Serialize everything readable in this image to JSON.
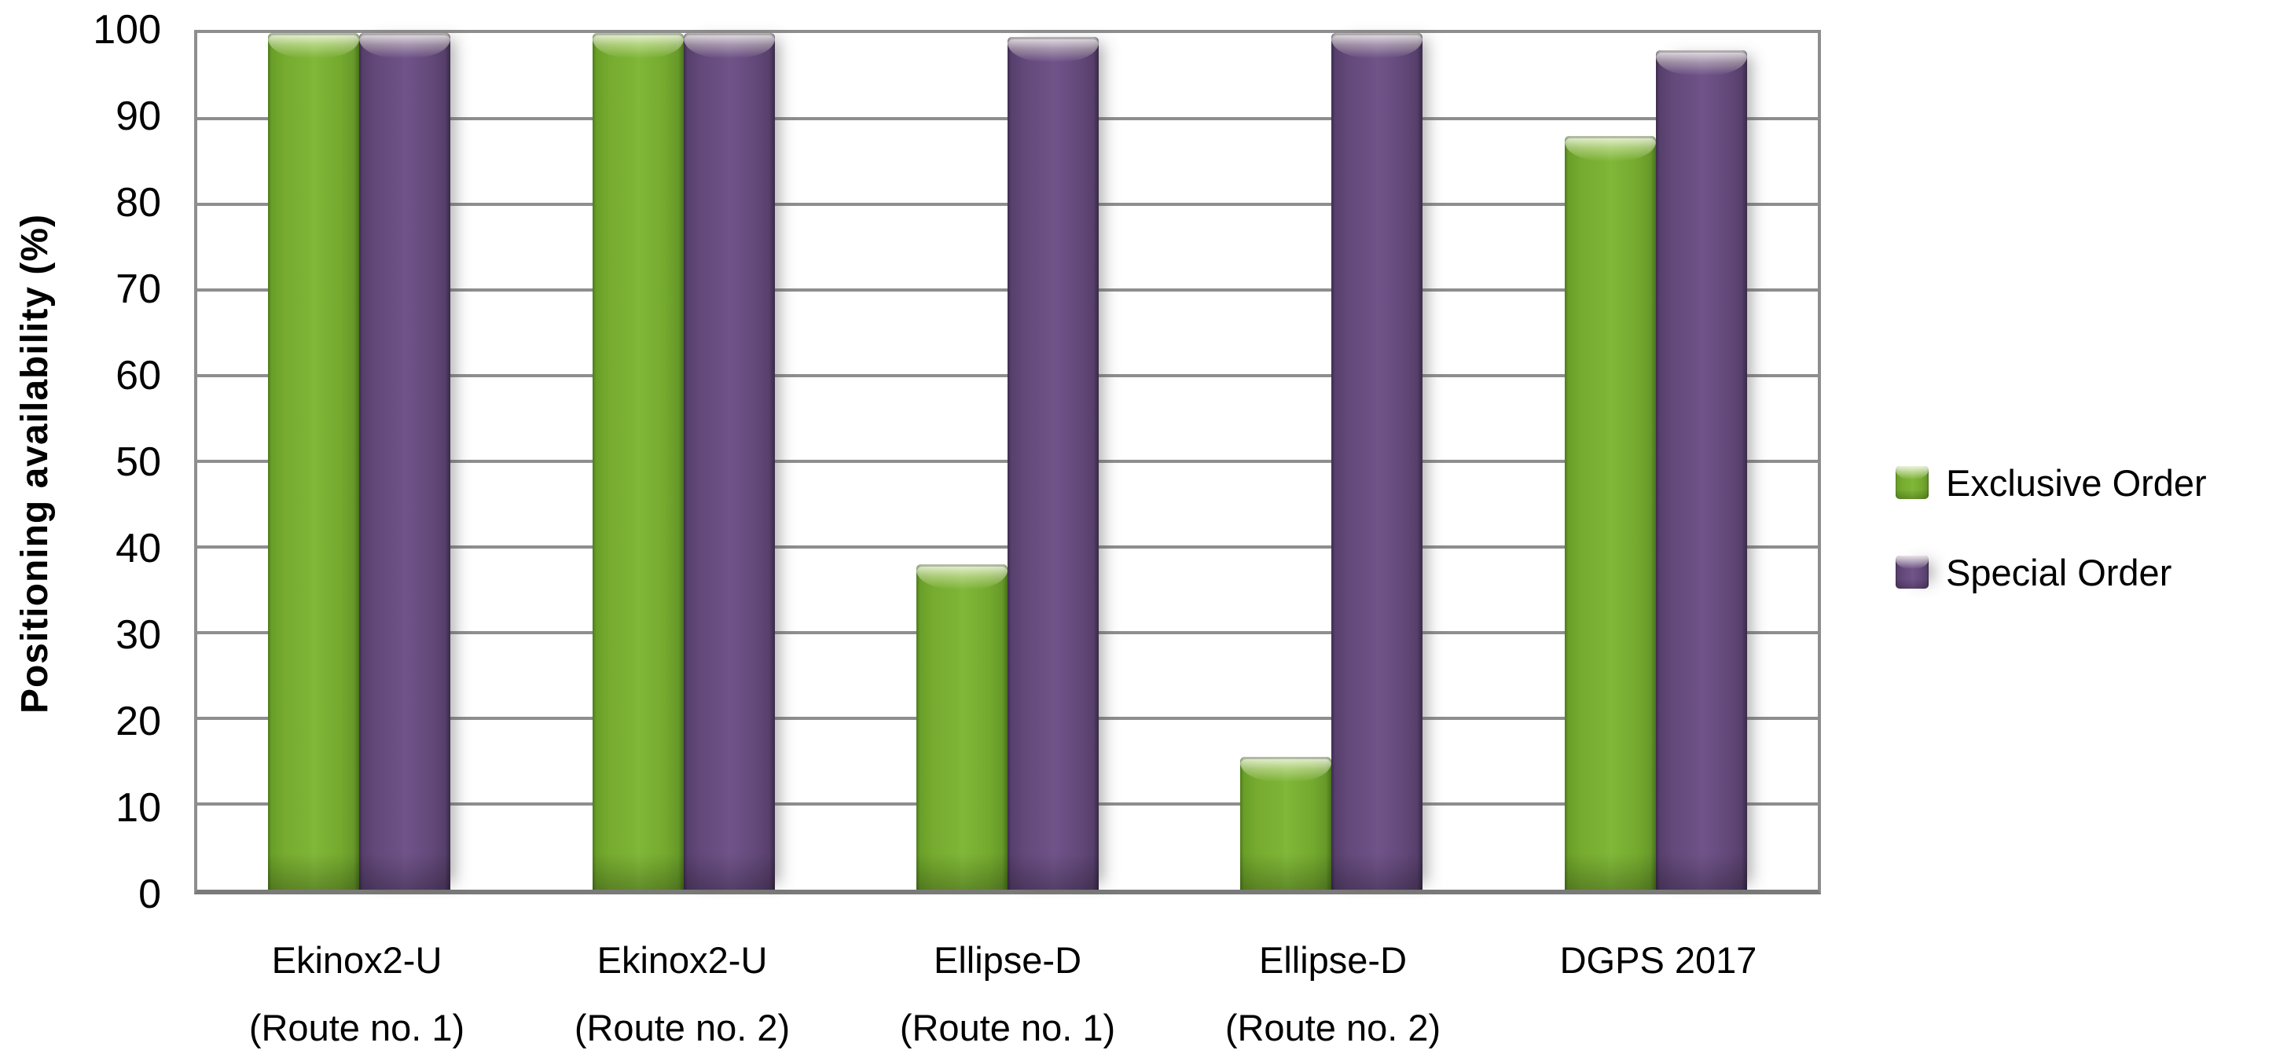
{
  "page": {
    "background": "#ffffff"
  },
  "chart_data": {
    "type": "bar",
    "title": "",
    "xlabel": "",
    "ylabel": "Positioning availability (%)",
    "ylim": [
      0,
      100
    ],
    "yticks": [
      0,
      10,
      20,
      30,
      40,
      50,
      60,
      70,
      80,
      90,
      100
    ],
    "grid": true,
    "legend_position": "right",
    "categories": [
      "Ekinox2-U\n(Route no. 1)",
      "Ekinox2-U\n(Route no. 2)",
      "Ellipse-D\n(Route no. 1)",
      "Ellipse-D\n(Route no. 2)",
      "DGPS 2017"
    ],
    "series": [
      {
        "name": "Exclusive Order",
        "color_hex": "#76AB2F",
        "values": [
          100,
          100,
          38,
          15.5,
          88
        ]
      },
      {
        "name": "Special Order",
        "color_hex": "#6B4E81",
        "values": [
          100,
          100,
          99.5,
          100,
          98
        ]
      }
    ],
    "colors": {
      "gridline": "#8E8E8E",
      "axis": "#7A7A7A",
      "text": "#000000",
      "plot_background": "#FFFFFF"
    }
  }
}
